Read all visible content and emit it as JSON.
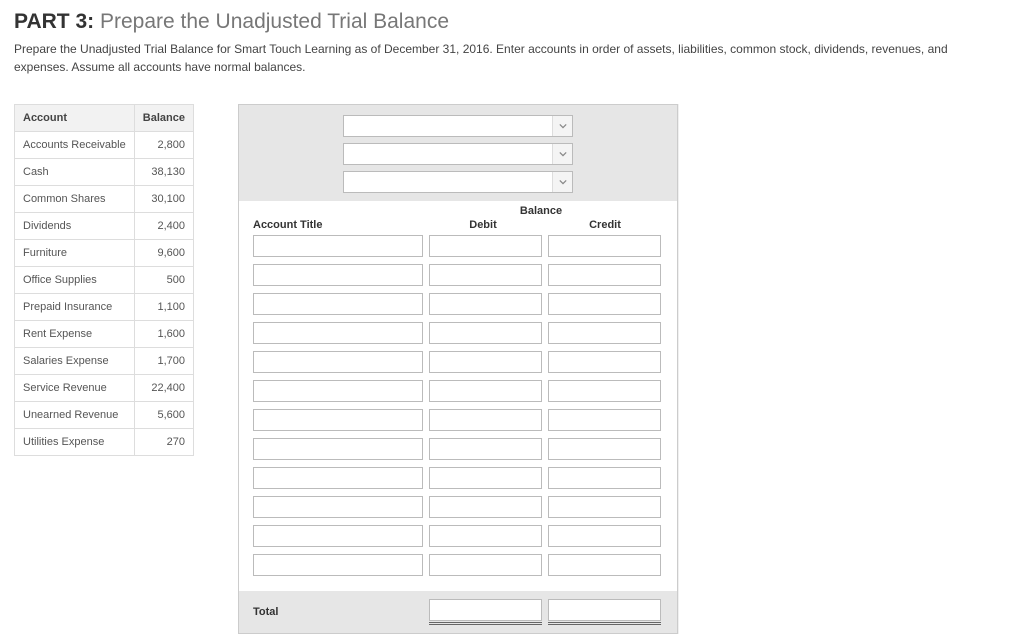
{
  "heading": {
    "part_label": "PART 3:",
    "title": "Prepare the Unadjusted Trial Balance"
  },
  "instructions": "Prepare the Unadjusted Trial Balance for Smart Touch Learning as of December 31, 2016. Enter accounts in order of assets, liabilities, common stock, dividends, revenues, and expenses. Assume all accounts have normal balances.",
  "reference_table": {
    "columns": [
      "Account",
      "Balance"
    ],
    "rows": [
      [
        "Accounts Receivable",
        "2,800"
      ],
      [
        "Cash",
        "38,130"
      ],
      [
        "Common Shares",
        "30,100"
      ],
      [
        "Dividends",
        "2,400"
      ],
      [
        "Furniture",
        "9,600"
      ],
      [
        "Office Supplies",
        "500"
      ],
      [
        "Prepaid Insurance",
        "1,100"
      ],
      [
        "Rent Expense",
        "1,600"
      ],
      [
        "Salaries Expense",
        "1,700"
      ],
      [
        "Service Revenue",
        "22,400"
      ],
      [
        "Unearned Revenue",
        "5,600"
      ],
      [
        "Utilities Expense",
        "270"
      ]
    ]
  },
  "worksheet": {
    "header_selects": [
      "",
      "",
      ""
    ],
    "column_headers": {
      "account_title": "Account Title",
      "balance_group": "Balance",
      "debit": "Debit",
      "credit": "Credit"
    },
    "row_count": 12,
    "total_label": "Total"
  },
  "colors": {
    "panel_bg": "#e6e6e6",
    "border": "#cccccc",
    "input_border": "#bbbbbb",
    "text": "#444444"
  }
}
